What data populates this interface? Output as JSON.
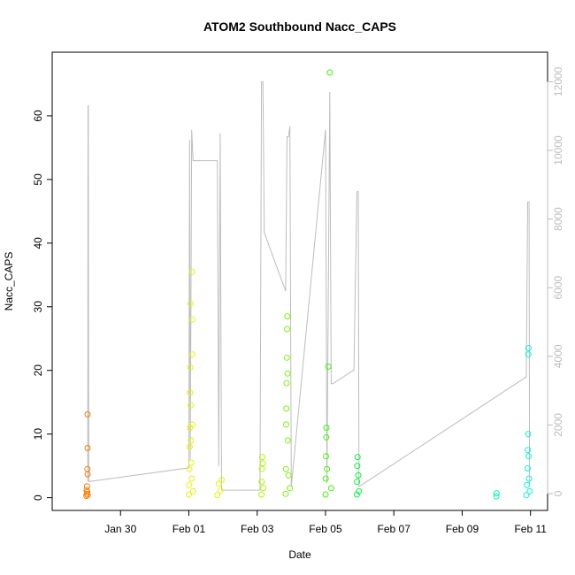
{
  "chart_data": {
    "type": "scatter",
    "title": "ATOM2 Southbound Nacc_CAPS",
    "xlabel": "Date",
    "ylabel": "Nacc_CAPS",
    "ylabel_right": "",
    "xlim": [
      "2017-01-28T00:00",
      "2017-02-11T12:00"
    ],
    "ylim": [
      -2,
      70
    ],
    "ylim_right": [
      0,
      12500
    ],
    "x_ticks": [
      {
        "date": "2017-01-30",
        "label": "Jan 30"
      },
      {
        "date": "2017-02-01",
        "label": "Feb 01"
      },
      {
        "date": "2017-02-03",
        "label": "Feb 03"
      },
      {
        "date": "2017-02-05",
        "label": "Feb 05"
      },
      {
        "date": "2017-02-07",
        "label": "Feb 07"
      },
      {
        "date": "2017-02-09",
        "label": "Feb 09"
      },
      {
        "date": "2017-02-11",
        "label": "Feb 11"
      }
    ],
    "y_ticks": [
      0,
      10,
      20,
      30,
      40,
      50,
      60
    ],
    "y_ticks_right": [
      0,
      2000,
      4000,
      6000,
      8000,
      10000,
      12000
    ],
    "grid": false,
    "points": [
      {
        "date": "2017-01-29T00:00",
        "y": 0.3,
        "color": "#f57f0a"
      },
      {
        "date": "2017-01-29T00:10",
        "y": 1.2,
        "color": "#f57f0a"
      },
      {
        "date": "2017-01-29T00:20",
        "y": 0.6,
        "color": "#f57f0a"
      },
      {
        "date": "2017-01-29T00:30",
        "y": 1.8,
        "color": "#f57f0a"
      },
      {
        "date": "2017-01-29T00:40",
        "y": 0.9,
        "color": "#f57f0a"
      },
      {
        "date": "2017-01-29T00:45",
        "y": 4.5,
        "color": "#f57f0a"
      },
      {
        "date": "2017-01-29T00:50",
        "y": 13.1,
        "color": "#f57f0a"
      },
      {
        "date": "2017-01-29T00:52",
        "y": 7.8,
        "color": "#f57f0a"
      },
      {
        "date": "2017-01-29T00:55",
        "y": 3.7,
        "color": "#f57f0a"
      },
      {
        "date": "2017-01-29T01:00",
        "y": 0.4,
        "color": "#f57f0a"
      },
      {
        "date": "2017-02-01T00:00",
        "y": 0.5,
        "color": "#e6f20a"
      },
      {
        "date": "2017-02-01T00:10",
        "y": 2.0,
        "color": "#e6f20a"
      },
      {
        "date": "2017-02-01T00:20",
        "y": 4.5,
        "color": "#e6f20a"
      },
      {
        "date": "2017-02-01T00:30",
        "y": 8.0,
        "color": "#e6f20a"
      },
      {
        "date": "2017-02-01T00:40",
        "y": 11.0,
        "color": "#e6f20a"
      },
      {
        "date": "2017-02-01T00:50",
        "y": 16.5,
        "color": "#e6f20a"
      },
      {
        "date": "2017-02-01T01:00",
        "y": 20.5,
        "color": "#e6f20a"
      },
      {
        "date": "2017-02-01T01:10",
        "y": 30.5,
        "color": "#e6f20a"
      },
      {
        "date": "2017-02-01T01:20",
        "y": 14.5,
        "color": "#e6f20a"
      },
      {
        "date": "2017-02-01T01:30",
        "y": 9.0,
        "color": "#e6f20a"
      },
      {
        "date": "2017-02-01T01:40",
        "y": 5.5,
        "color": "#e6f20a"
      },
      {
        "date": "2017-02-01T02:00",
        "y": 3.0,
        "color": "#e6f20a"
      },
      {
        "date": "2017-02-01T02:20",
        "y": 35.5,
        "color": "#e6f20a"
      },
      {
        "date": "2017-02-01T02:25",
        "y": 28.0,
        "color": "#e6f20a"
      },
      {
        "date": "2017-02-01T02:30",
        "y": 22.5,
        "color": "#e6f20a"
      },
      {
        "date": "2017-02-01T02:40",
        "y": 11.5,
        "color": "#e6f20a"
      },
      {
        "date": "2017-02-01T03:00",
        "y": 1.0,
        "color": "#e6f20a"
      },
      {
        "date": "2017-02-01T20:00",
        "y": 0.4,
        "color": "#e6f20a"
      },
      {
        "date": "2017-02-01T21:00",
        "y": 2.2,
        "color": "#e6f20a"
      },
      {
        "date": "2017-02-01T22:00",
        "y": 1.1,
        "color": "#e6f20a"
      },
      {
        "date": "2017-02-01T23:00",
        "y": 2.8,
        "color": "#e6f20a"
      },
      {
        "date": "2017-02-03T03:00",
        "y": 0.5,
        "color": "#b0f20a"
      },
      {
        "date": "2017-02-03T03:10",
        "y": 2.5,
        "color": "#b0f20a"
      },
      {
        "date": "2017-02-03T03:20",
        "y": 4.5,
        "color": "#b0f20a"
      },
      {
        "date": "2017-02-03T03:30",
        "y": 6.4,
        "color": "#b0f20a"
      },
      {
        "date": "2017-02-03T04:00",
        "y": 5.4,
        "color": "#b0f20a"
      },
      {
        "date": "2017-02-03T04:20",
        "y": 1.5,
        "color": "#b0f20a"
      },
      {
        "date": "2017-02-03T20:00",
        "y": 0.6,
        "color": "#7cf20a"
      },
      {
        "date": "2017-02-03T20:10",
        "y": 4.5,
        "color": "#7cf20a"
      },
      {
        "date": "2017-02-03T20:20",
        "y": 11.5,
        "color": "#7cf20a"
      },
      {
        "date": "2017-02-03T20:30",
        "y": 14.0,
        "color": "#7cf20a"
      },
      {
        "date": "2017-02-03T20:40",
        "y": 18.0,
        "color": "#7cf20a"
      },
      {
        "date": "2017-02-03T20:50",
        "y": 22.0,
        "color": "#7cf20a"
      },
      {
        "date": "2017-02-03T21:00",
        "y": 26.5,
        "color": "#7cf20a"
      },
      {
        "date": "2017-02-03T21:10",
        "y": 28.5,
        "color": "#7cf20a"
      },
      {
        "date": "2017-02-03T21:20",
        "y": 19.5,
        "color": "#7cf20a"
      },
      {
        "date": "2017-02-03T21:30",
        "y": 9.0,
        "color": "#7cf20a"
      },
      {
        "date": "2017-02-03T22:00",
        "y": 3.5,
        "color": "#7cf20a"
      },
      {
        "date": "2017-02-03T23:00",
        "y": 1.5,
        "color": "#7cf20a"
      },
      {
        "date": "2017-02-05T00:00",
        "y": 0.5,
        "color": "#3ef20a"
      },
      {
        "date": "2017-02-05T00:10",
        "y": 3.0,
        "color": "#3ef20a"
      },
      {
        "date": "2017-02-05T00:20",
        "y": 6.5,
        "color": "#3ef20a"
      },
      {
        "date": "2017-02-05T00:30",
        "y": 9.5,
        "color": "#3ef20a"
      },
      {
        "date": "2017-02-05T00:40",
        "y": 11.0,
        "color": "#3ef20a"
      },
      {
        "date": "2017-02-05T01:00",
        "y": 4.5,
        "color": "#3ef20a"
      },
      {
        "date": "2017-02-05T02:00",
        "y": 20.6,
        "color": "#3ef20a"
      },
      {
        "date": "2017-02-05T03:00",
        "y": 66.8,
        "color": "#3ef20a"
      },
      {
        "date": "2017-02-05T04:00",
        "y": 1.5,
        "color": "#3ef20a"
      },
      {
        "date": "2017-02-05T22:00",
        "y": 0.5,
        "color": "#0af23f"
      },
      {
        "date": "2017-02-05T22:10",
        "y": 2.5,
        "color": "#0af23f"
      },
      {
        "date": "2017-02-05T22:20",
        "y": 5.0,
        "color": "#0af23f"
      },
      {
        "date": "2017-02-05T22:30",
        "y": 6.4,
        "color": "#0af23f"
      },
      {
        "date": "2017-02-05T23:00",
        "y": 3.5,
        "color": "#0af23f"
      },
      {
        "date": "2017-02-05T23:30",
        "y": 1.0,
        "color": "#0af23f"
      },
      {
        "date": "2017-02-10T00:00",
        "y": 0.2,
        "color": "#0af2b4"
      },
      {
        "date": "2017-02-10T00:10",
        "y": 0.7,
        "color": "#0af2b4"
      },
      {
        "date": "2017-02-10T21:00",
        "y": 0.4,
        "color": "#0af2cf"
      },
      {
        "date": "2017-02-10T21:30",
        "y": 2.0,
        "color": "#0af2cf"
      },
      {
        "date": "2017-02-10T22:00",
        "y": 4.6,
        "color": "#0af2cf"
      },
      {
        "date": "2017-02-10T22:10",
        "y": 7.5,
        "color": "#0af2cf"
      },
      {
        "date": "2017-02-10T22:20",
        "y": 10.0,
        "color": "#0af2cf"
      },
      {
        "date": "2017-02-10T22:30",
        "y": 22.5,
        "color": "#0af2cf"
      },
      {
        "date": "2017-02-10T22:35",
        "y": 23.5,
        "color": "#0af2cf"
      },
      {
        "date": "2017-02-10T22:40",
        "y": 6.5,
        "color": "#0af2cf"
      },
      {
        "date": "2017-02-10T23:00",
        "y": 3.0,
        "color": "#0af2cf"
      },
      {
        "date": "2017-02-10T23:30",
        "y": 1.0,
        "color": "#0af2cf"
      }
    ],
    "altitude_line": {
      "color": "#bdbdbd",
      "points": [
        {
          "date": "2017-01-29T01:00",
          "y2": 350
        },
        {
          "date": "2017-01-29T01:10",
          "y2": 11300
        },
        {
          "date": "2017-01-29T01:20",
          "y2": 11300
        },
        {
          "date": "2017-01-29T01:40",
          "y2": 350
        },
        {
          "date": "2017-02-01T00:00",
          "y2": 750
        },
        {
          "date": "2017-02-01T00:30",
          "y2": 10300
        },
        {
          "date": "2017-02-01T01:00",
          "y2": 1000
        },
        {
          "date": "2017-02-01T02:00",
          "y2": 10600
        },
        {
          "date": "2017-02-01T03:00",
          "y2": 9700
        },
        {
          "date": "2017-02-01T20:00",
          "y2": 9700
        },
        {
          "date": "2017-02-01T21:00",
          "y2": 800
        },
        {
          "date": "2017-02-01T22:00",
          "y2": 10500
        },
        {
          "date": "2017-02-01T23:00",
          "y2": 100
        },
        {
          "date": "2017-02-03T02:00",
          "y2": 100
        },
        {
          "date": "2017-02-03T03:00",
          "y2": 12000
        },
        {
          "date": "2017-02-03T04:00",
          "y2": 12000
        },
        {
          "date": "2017-02-03T05:00",
          "y2": 7600
        },
        {
          "date": "2017-02-03T20:00",
          "y2": 5900
        },
        {
          "date": "2017-02-03T21:00",
          "y2": 10400
        },
        {
          "date": "2017-02-03T22:00",
          "y2": 10400
        },
        {
          "date": "2017-02-03T23:00",
          "y2": 10700
        },
        {
          "date": "2017-02-04T00:00",
          "y2": 200
        },
        {
          "date": "2017-02-05T00:00",
          "y2": 10600
        },
        {
          "date": "2017-02-05T01:00",
          "y2": 300
        },
        {
          "date": "2017-02-05T03:00",
          "y2": 11700
        },
        {
          "date": "2017-02-05T04:00",
          "y2": 3200
        },
        {
          "date": "2017-02-05T05:00",
          "y2": 3200
        },
        {
          "date": "2017-02-05T20:00",
          "y2": 3600
        },
        {
          "date": "2017-02-05T22:00",
          "y2": 8800
        },
        {
          "date": "2017-02-05T23:00",
          "y2": 8800
        },
        {
          "date": "2017-02-05T23:30",
          "y2": 200
        },
        {
          "date": "2017-02-10T21:00",
          "y2": 3400
        },
        {
          "date": "2017-02-10T22:00",
          "y2": 8500
        },
        {
          "date": "2017-02-10T23:00",
          "y2": 8500
        },
        {
          "date": "2017-02-10T23:20",
          "y2": 200
        }
      ]
    }
  }
}
